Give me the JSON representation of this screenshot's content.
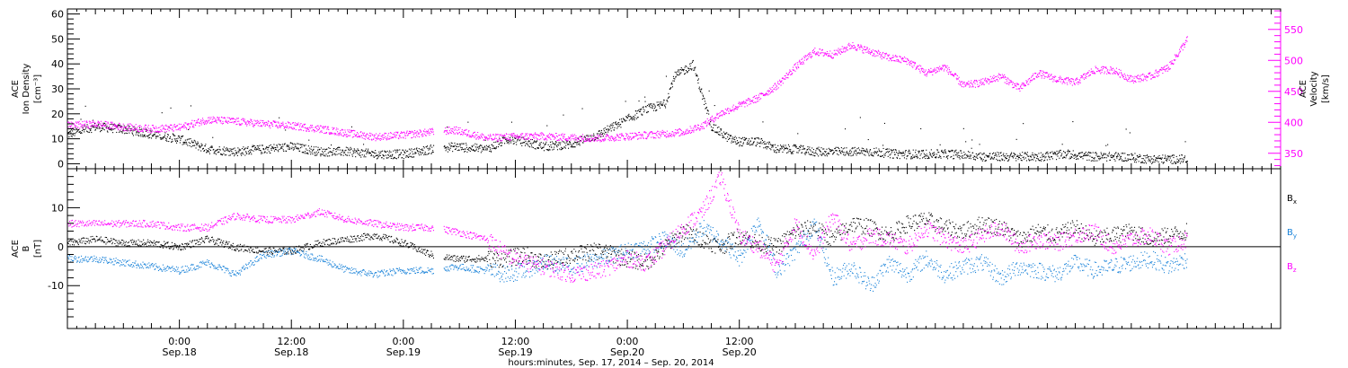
{
  "chart_data": [
    {
      "type": "scatter",
      "panel": "top",
      "ylabel_left": [
        "ACE",
        "Ion Density",
        "[cm⁻³]"
      ],
      "ylabel_right": [
        "ACE",
        "Velocity",
        "[km/s]"
      ],
      "ylim_left": [
        -2,
        62
      ],
      "ylim_right": [
        325,
        583
      ],
      "yticks_left": [
        0,
        10,
        20,
        30,
        40,
        50,
        60
      ],
      "yticks_right": [
        350,
        400,
        450,
        500,
        550
      ],
      "colors": {
        "density": "#000000",
        "velocity": "#ff00ff"
      },
      "series": [
        {
          "name": "Ion Density",
          "axis": "left",
          "hours": [
            0,
            3,
            6,
            9,
            12,
            15,
            18,
            21,
            24,
            27,
            30,
            33,
            36,
            39,
            41.5,
            45,
            47,
            49,
            51,
            54,
            57,
            60,
            62,
            64,
            65,
            67,
            69,
            71,
            72,
            74,
            76,
            78,
            80,
            82,
            84,
            86,
            89,
            92,
            95,
            98,
            101,
            104,
            107,
            110,
            113,
            116,
            119
          ],
          "values": [
            12,
            15,
            14,
            12,
            10,
            6,
            5,
            6,
            7,
            5,
            5,
            4,
            4,
            6,
            7,
            6,
            10,
            9,
            7,
            8,
            12,
            18,
            22,
            24,
            35,
            40,
            15,
            10,
            9,
            9,
            6,
            6,
            5,
            5,
            5,
            5,
            4,
            4,
            4,
            3,
            3,
            3,
            4,
            3,
            3,
            2,
            2
          ]
        },
        {
          "name": "Velocity",
          "axis": "right",
          "hours": [
            0,
            3,
            6,
            9,
            12,
            15,
            18,
            21,
            24,
            27,
            30,
            33,
            36,
            39,
            41.5,
            45,
            47,
            49,
            51,
            54,
            57,
            60,
            62,
            64,
            66,
            68,
            70,
            72,
            74,
            76,
            78,
            80,
            82,
            84,
            86,
            88,
            90,
            92,
            94,
            96,
            98,
            100,
            102,
            104,
            106,
            108,
            110,
            112,
            114,
            116,
            118,
            120
          ],
          "values": [
            395,
            398,
            393,
            390,
            392,
            405,
            402,
            398,
            395,
            390,
            383,
            377,
            380,
            385,
            388,
            375,
            377,
            378,
            378,
            376,
            375,
            378,
            380,
            382,
            385,
            395,
            415,
            428,
            440,
            460,
            490,
            515,
            510,
            525,
            515,
            505,
            500,
            480,
            490,
            460,
            465,
            475,
            455,
            480,
            470,
            465,
            485,
            485,
            470,
            475,
            490,
            535
          ]
        }
      ]
    },
    {
      "type": "scatter",
      "panel": "bottom",
      "ylabel_left": [
        "ACE",
        "B",
        "[nT]"
      ],
      "ylim": [
        -21,
        20
      ],
      "yticks": [
        -10,
        0,
        10
      ],
      "zero_line": true,
      "colors": {
        "Bx": "#000000",
        "By": "#1a83d9",
        "Bz": "#ff00ff"
      },
      "series": [
        {
          "name": "Bx",
          "label_main": "B",
          "label_sub": "x",
          "hours": [
            0,
            3,
            6,
            9,
            12,
            15,
            18,
            21,
            24,
            27,
            30,
            33,
            36,
            39,
            41.5,
            45,
            47,
            49,
            51,
            54,
            57,
            60,
            62,
            64,
            66,
            68,
            70,
            72,
            74,
            76,
            78,
            80,
            82,
            84,
            86,
            88,
            90,
            92,
            94,
            96,
            98,
            100,
            102,
            104,
            106,
            108,
            110,
            112,
            114,
            116,
            118,
            120
          ],
          "values": [
            1,
            2,
            1,
            1,
            0,
            2,
            0,
            -1,
            -1,
            1,
            2,
            3,
            1,
            -2,
            -3,
            -3,
            -3,
            -2,
            -4,
            -2,
            -1,
            -3,
            -4,
            0,
            4,
            2,
            0,
            3,
            1,
            0,
            4,
            5,
            2,
            6,
            5,
            3,
            6,
            7,
            5,
            4,
            6,
            5,
            2,
            4,
            3,
            5,
            2,
            3,
            4,
            2,
            3,
            4
          ]
        },
        {
          "name": "By",
          "label_main": "B",
          "label_sub": "y",
          "hours": [
            0,
            3,
            6,
            9,
            12,
            15,
            18,
            21,
            24,
            27,
            30,
            33,
            36,
            39,
            41.5,
            45,
            47,
            49,
            51,
            54,
            57,
            60,
            62,
            64,
            66,
            68,
            70,
            72,
            74,
            76,
            78,
            80,
            82,
            84,
            86,
            88,
            90,
            92,
            94,
            96,
            98,
            100,
            102,
            104,
            106,
            108,
            110,
            112,
            114,
            116,
            118,
            120
          ],
          "values": [
            -3,
            -3,
            -4,
            -5,
            -6,
            -4,
            -7,
            -2,
            -1,
            -3,
            -6,
            -7,
            -6,
            -6,
            -5,
            -6,
            -7,
            -6,
            -4,
            -5,
            -3,
            -1,
            0,
            2,
            -1,
            5,
            2,
            -3,
            7,
            -6,
            -1,
            6,
            -8,
            -5,
            -10,
            -4,
            -7,
            -3,
            -7,
            -5,
            -4,
            -8,
            -5,
            -6,
            -7,
            -4,
            -6,
            -5,
            -4,
            -3,
            -5,
            -3
          ]
        },
        {
          "name": "Bz",
          "label_main": "B",
          "label_sub": "z",
          "hours": [
            0,
            3,
            6,
            9,
            12,
            15,
            18,
            21,
            24,
            27,
            30,
            33,
            36,
            39,
            41.5,
            45,
            47,
            49,
            51,
            54,
            57,
            60,
            62,
            64,
            66,
            68,
            70,
            72,
            74,
            76,
            78,
            80,
            82,
            84,
            86,
            88,
            90,
            92,
            94,
            96,
            98,
            100,
            102,
            104,
            106,
            108,
            110,
            112,
            114,
            116,
            118,
            120
          ],
          "values": [
            6,
            6,
            6,
            6,
            5,
            5,
            8,
            7,
            7,
            9,
            7,
            6,
            5,
            5,
            4,
            2,
            -2,
            -4,
            -5,
            -7,
            -6,
            -3,
            -4,
            0,
            5,
            9,
            18,
            3,
            0,
            -5,
            6,
            -2,
            8,
            0,
            3,
            2,
            0,
            5,
            2,
            0,
            3,
            5,
            0,
            2,
            1,
            3,
            4,
            0,
            2,
            3,
            0,
            2
          ]
        }
      ]
    }
  ],
  "x_axis": {
    "start_hour": 0,
    "end_hour": 130,
    "ticks": [
      {
        "hour": 12,
        "label1": "0:00",
        "label2": "Sep.18"
      },
      {
        "hour": 24,
        "label1": "12:00",
        "label2": "Sep.18"
      },
      {
        "hour": 36,
        "label1": "0:00",
        "label2": "Sep.19"
      },
      {
        "hour": 48,
        "label1": "12:00",
        "label2": "Sep.19"
      },
      {
        "hour": 60,
        "label1": "0:00",
        "label2": "Sep.20"
      },
      {
        "hour": 72,
        "label1": "12:00",
        "label2": "Sep.20"
      }
    ],
    "title": "hours:minutes, Sep. 17, 2014 – Sep. 20, 2014"
  }
}
